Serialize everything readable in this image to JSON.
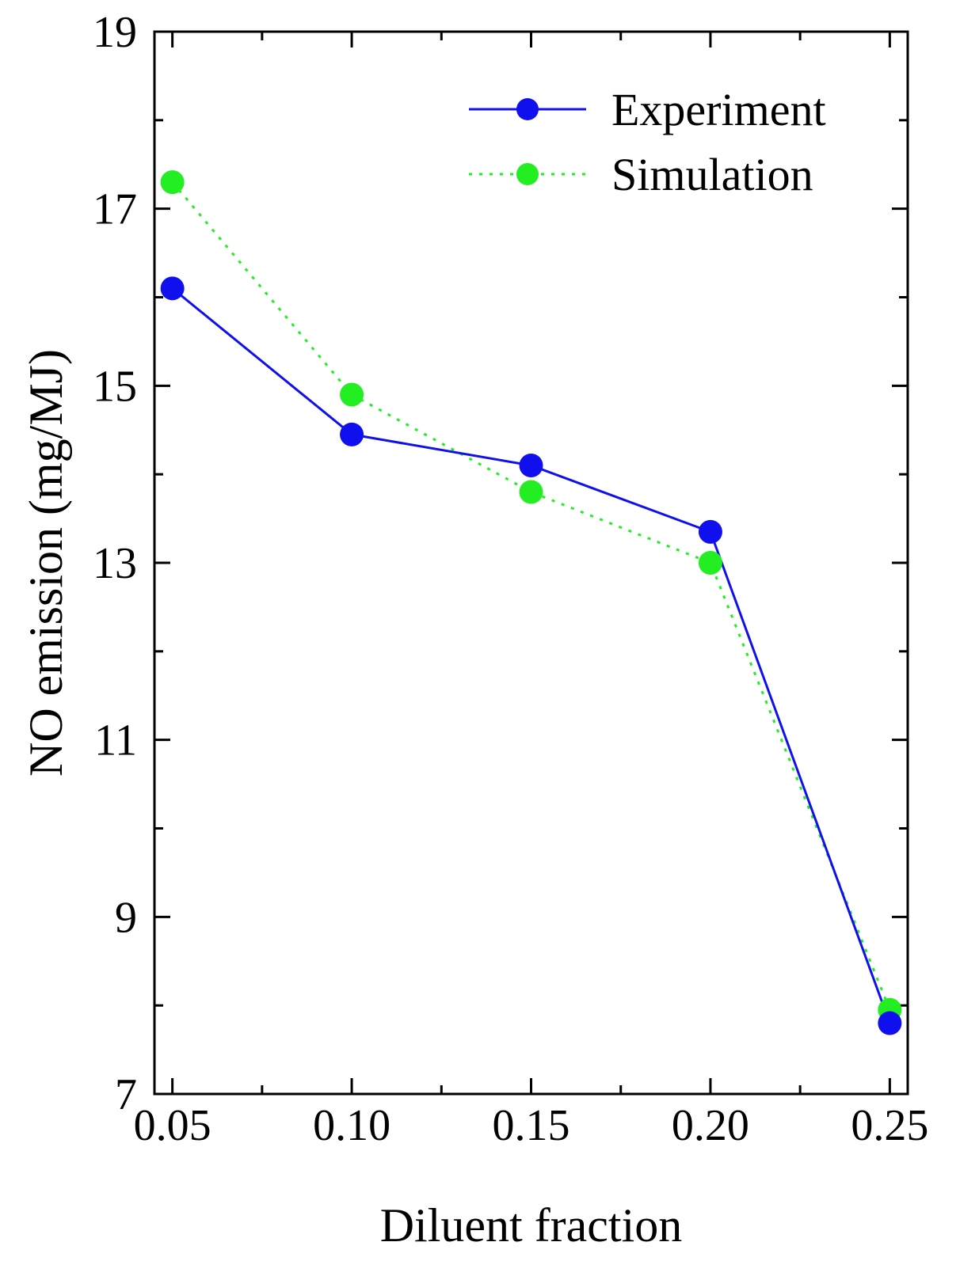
{
  "chart_data": {
    "type": "line",
    "title": "",
    "xlabel": "Diluent fraction",
    "ylabel": "NO emission (mg/MJ)",
    "x": [
      0.05,
      0.1,
      0.15,
      0.2,
      0.25
    ],
    "x_tick_labels": [
      "0.05",
      "0.10",
      "0.15",
      "0.20",
      "0.25"
    ],
    "y_ticks": [
      7,
      9,
      11,
      13,
      15,
      17,
      19
    ],
    "y_tick_labels": [
      "7",
      "9",
      "11",
      "13",
      "15",
      "17",
      "19"
    ],
    "xlim": [
      0.045,
      0.255
    ],
    "ylim": [
      7,
      19
    ],
    "legend_position": "top-right",
    "series": [
      {
        "name": "Experiment",
        "values": [
          16.1,
          14.45,
          14.1,
          13.35,
          7.8
        ],
        "color": "#1010ee",
        "line_style": "solid",
        "marker": "circle"
      },
      {
        "name": "Simulation",
        "values": [
          17.3,
          14.9,
          13.8,
          13.0,
          7.95
        ],
        "color": "#22ee22",
        "line_style": "dotted",
        "marker": "circle"
      }
    ]
  }
}
